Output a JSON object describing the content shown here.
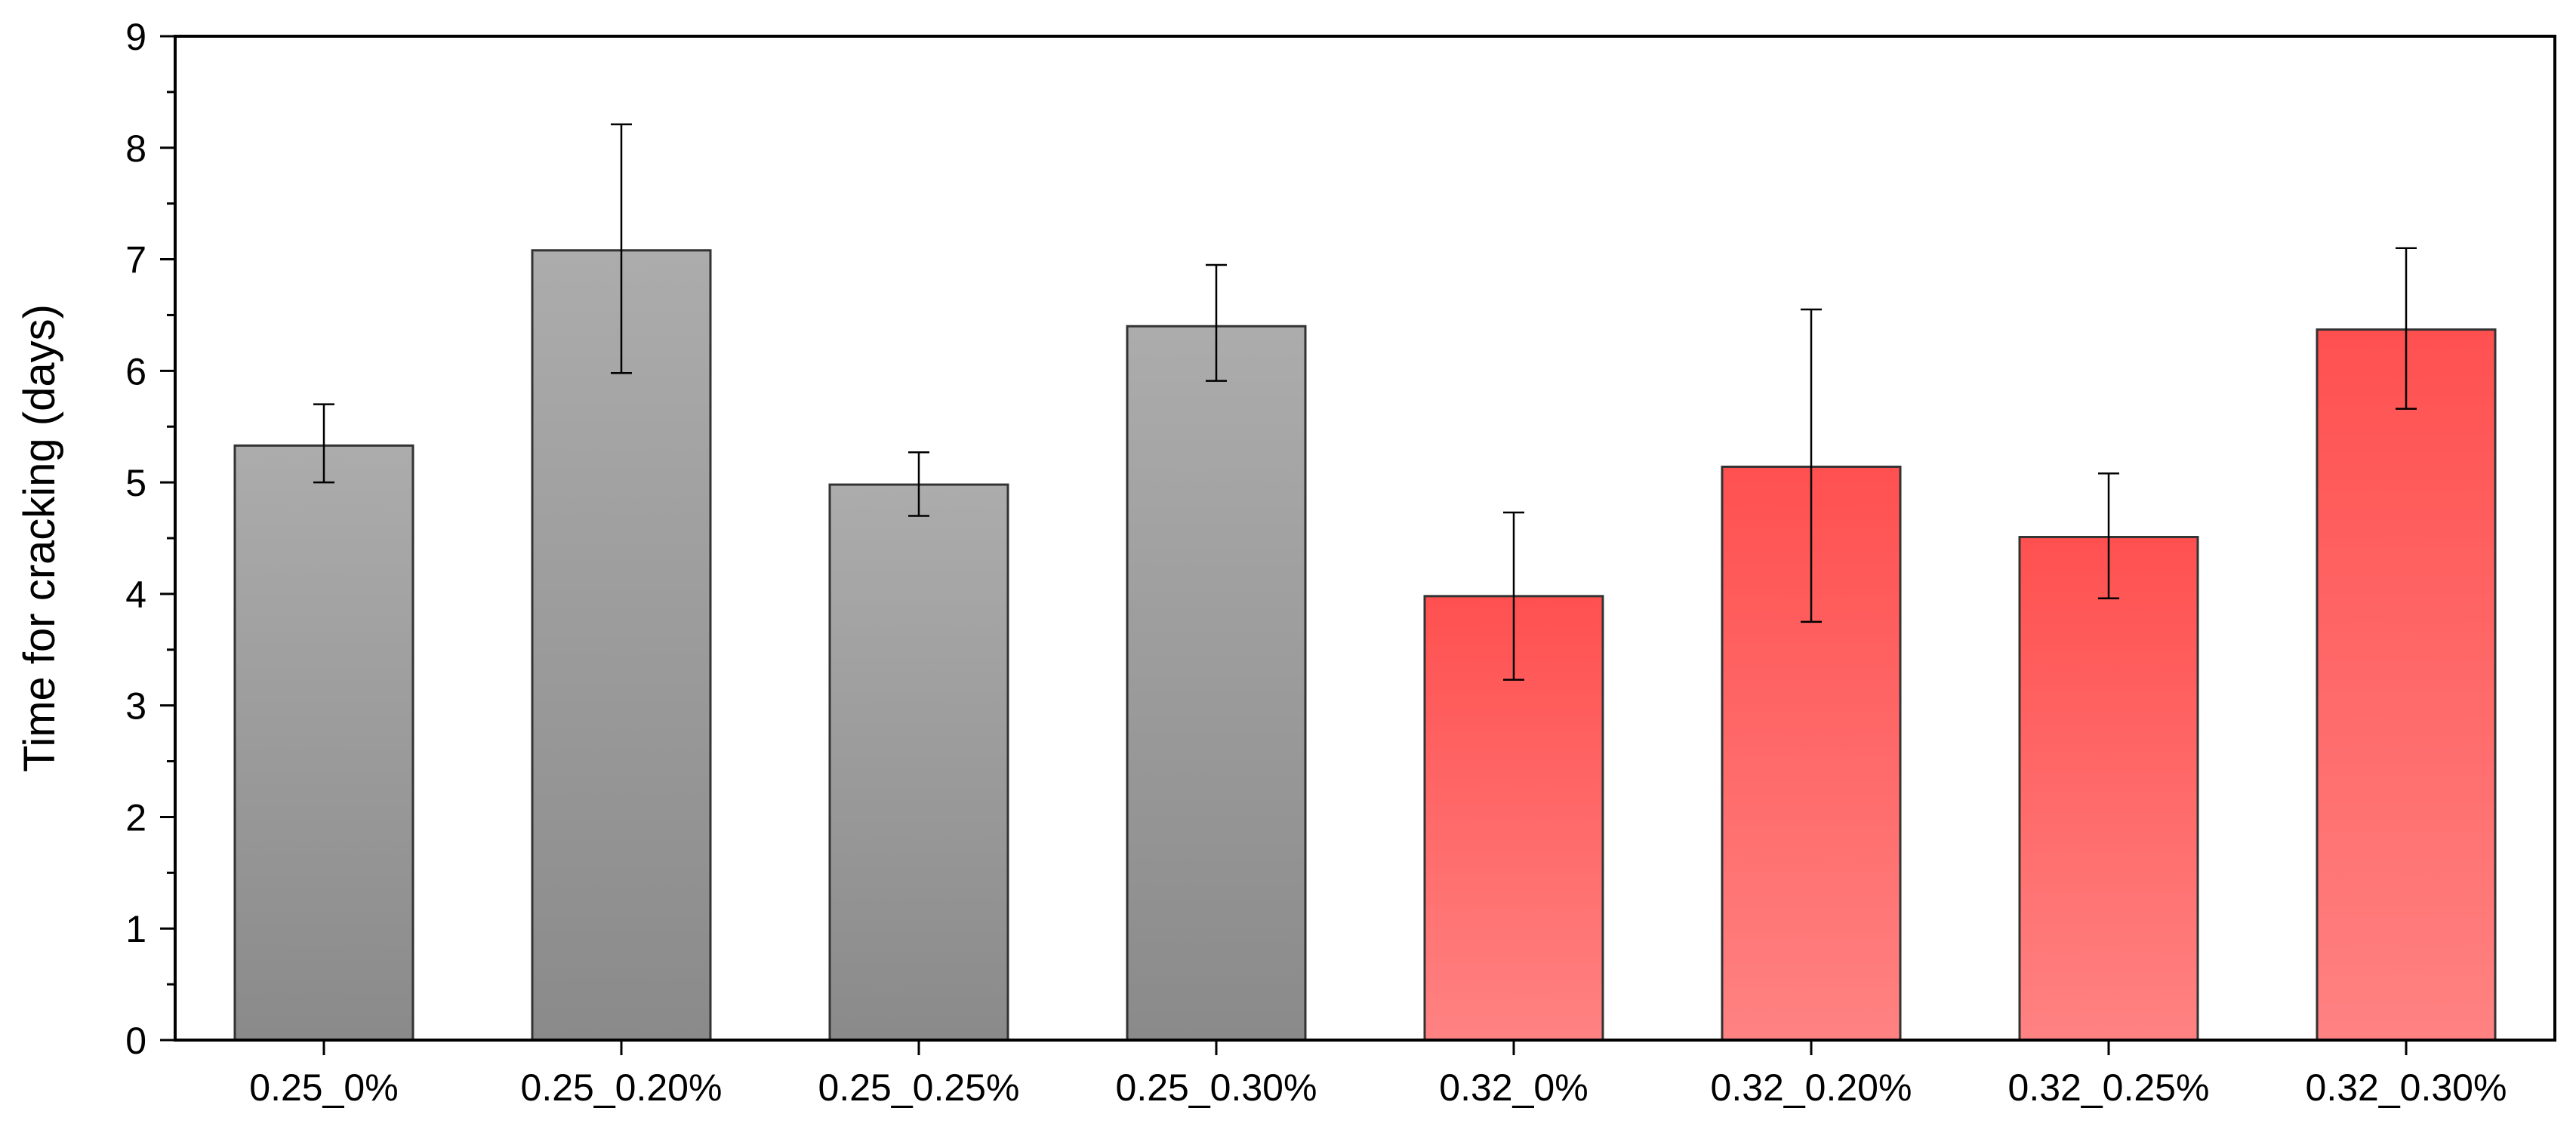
{
  "chart_data": {
    "type": "bar",
    "title": "",
    "xlabel": "",
    "ylabel": "Time for cracking (days)",
    "ylim": [
      0,
      9
    ],
    "yticks": [
      0,
      1,
      2,
      3,
      4,
      5,
      6,
      7,
      8,
      9
    ],
    "categories": [
      "0.25_0%",
      "0.25_0.20%",
      "0.25_0.25%",
      "0.25_0.30%",
      "0.32_0%",
      "0.32_0.20%",
      "0.32_0.25%",
      "0.32_0.30%"
    ],
    "values": [
      5.33,
      7.08,
      4.98,
      6.4,
      3.98,
      5.14,
      4.51,
      6.37
    ],
    "error_low": [
      5.0,
      5.98,
      4.7,
      5.91,
      3.23,
      3.75,
      3.96,
      5.66
    ],
    "error_high": [
      5.7,
      8.21,
      5.27,
      6.95,
      4.73,
      6.55,
      5.08,
      7.1
    ],
    "bar_groups": [
      "gray",
      "gray",
      "gray",
      "gray",
      "red",
      "red",
      "red",
      "red"
    ],
    "grid": false,
    "legend": "none",
    "colors": {
      "gray_top": "#acacac",
      "gray_bottom": "#8a8a8a",
      "red_top": "#ff5050",
      "red_bottom": "#ff8282",
      "outline": "#333333"
    }
  }
}
